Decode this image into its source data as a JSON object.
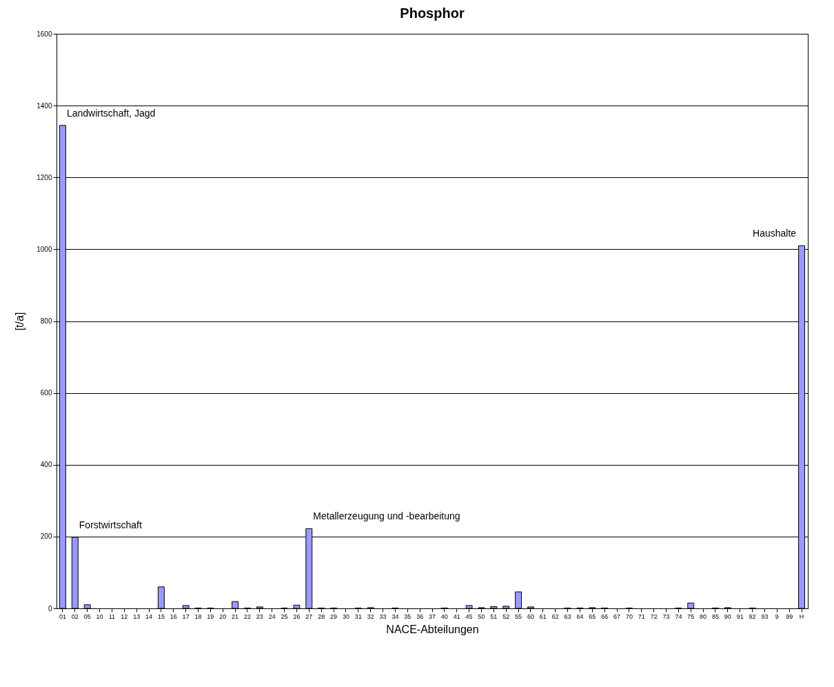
{
  "chart_data": {
    "type": "bar",
    "title": "Phosphor",
    "xlabel": "NACE-Abteilungen",
    "ylabel": "[t/a]",
    "categories": [
      "01",
      "02",
      "05",
      "10",
      "11",
      "12",
      "13",
      "14",
      "15",
      "16",
      "17",
      "18",
      "19",
      "20",
      "21",
      "22",
      "23",
      "24",
      "25",
      "26",
      "27",
      "28",
      "29",
      "30",
      "31",
      "32",
      "33",
      "34",
      "35",
      "36",
      "37",
      "40",
      "41",
      "45",
      "50",
      "51",
      "52",
      "55",
      "60",
      "61",
      "62",
      "63",
      "64",
      "65",
      "66",
      "67",
      "70",
      "71",
      "72",
      "73",
      "74",
      "75",
      "80",
      "85",
      "90",
      "91",
      "92",
      "93",
      "9",
      "99",
      "H"
    ],
    "values": [
      1345,
      198,
      10,
      0,
      0,
      0,
      0,
      0,
      60,
      0,
      8,
      1,
      1,
      0,
      19,
      1,
      4,
      0,
      1,
      9,
      222,
      1,
      1,
      0,
      1,
      2,
      0,
      1,
      0,
      0,
      0,
      1,
      0,
      8,
      2,
      5,
      6,
      46,
      4,
      0,
      0,
      1,
      1,
      2,
      1,
      0,
      1,
      0,
      0,
      0,
      1,
      15,
      0,
      1,
      2,
      0,
      1,
      0,
      0,
      0,
      1010
    ],
    "color": "#9999ff",
    "ylim": [
      0,
      1600
    ],
    "yticks": [
      0,
      200,
      400,
      600,
      800,
      1000,
      1200,
      1400,
      1600
    ],
    "grid": "y",
    "annotations": [
      {
        "text": "Landwirtschaft, Jagd",
        "x": "01",
        "y": 1345
      },
      {
        "text": "Forstwirtschaft",
        "x": "02",
        "y": 198
      },
      {
        "text": "Metallerzeugung und -bearbeitung",
        "x": "27",
        "y": 222
      },
      {
        "text": "Haushalte",
        "x": "H",
        "y": 1010
      }
    ]
  }
}
